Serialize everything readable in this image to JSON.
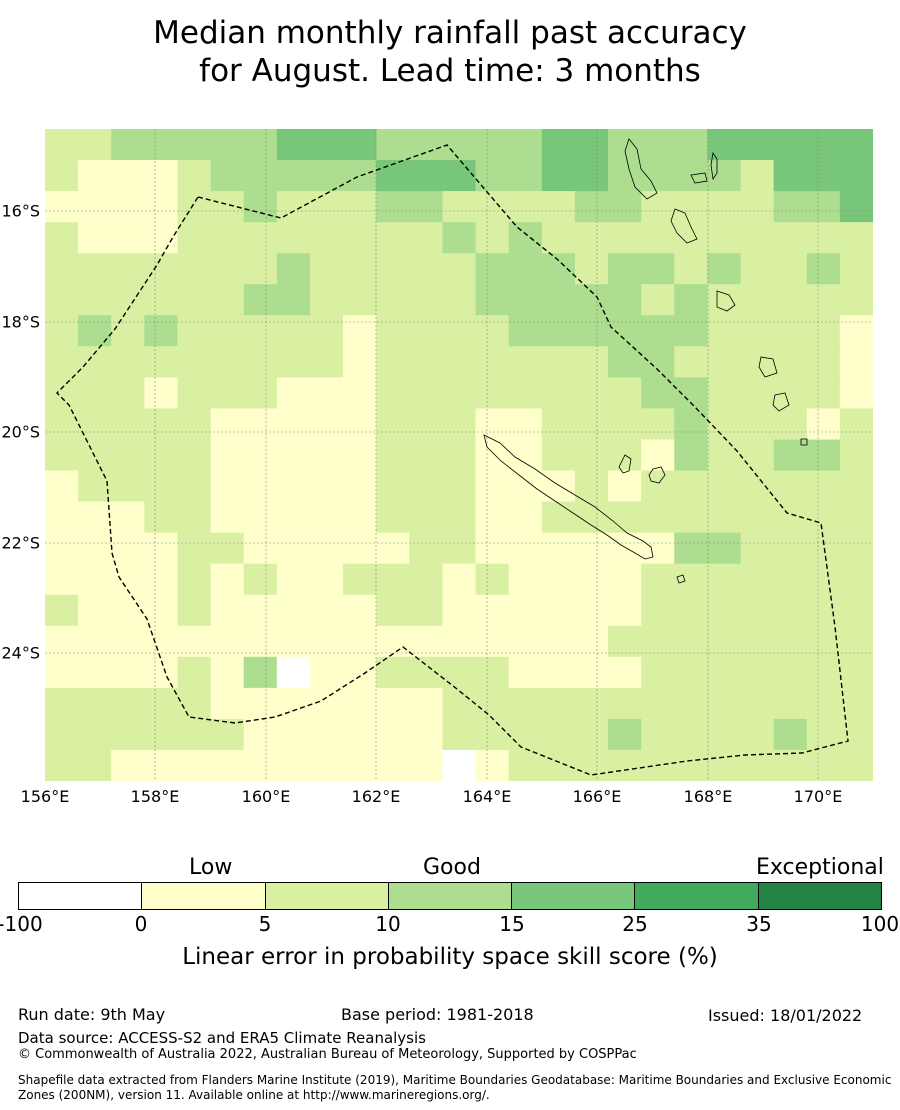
{
  "title_line1": "Median monthly rainfall past accuracy",
  "title_line2": "for August. Lead time: 3 months",
  "map": {
    "lat_labels": [
      "16°S",
      "18°S",
      "20°S",
      "22°S",
      "24°S"
    ],
    "lon_labels": [
      "156°E",
      "158°E",
      "160°E",
      "162°E",
      "164°E",
      "166°E",
      "168°E",
      "170°E"
    ],
    "boundary_style": "dashed",
    "palette": [
      "#ffffff",
      "#ffffcc",
      "#d9f0a3",
      "#addd8e",
      "#78c679",
      "#41ab5d",
      "#238443"
    ]
  },
  "legend": {
    "categories": {
      "low": "Low",
      "good": "Good",
      "exceptional": "Exceptional"
    },
    "ticks": [
      "-100",
      "0",
      "5",
      "10",
      "15",
      "25",
      "35",
      "100"
    ],
    "label": "Linear error in probability space skill score (%)"
  },
  "footer": {
    "run_date": "Run date: 9th May",
    "base_period": "Base period: 1981-2018",
    "issued": "Issued: 18/01/2022",
    "data_source": "Data source: ACCESS-S2 and ERA5 Climate Reanalysis",
    "copyright": "© Commonwealth of Australia 2022, Australian Bureau of Meteorology, Supported by COSPPac",
    "shapefile": "Shapefile data extracted from Flanders Marine Institute (2019), Maritime Boundaries Geodatabase: Maritime Boundaries and Exclusive Economic Zones (200NM), version 11. Available online at http://www.marineregions.org/."
  }
}
